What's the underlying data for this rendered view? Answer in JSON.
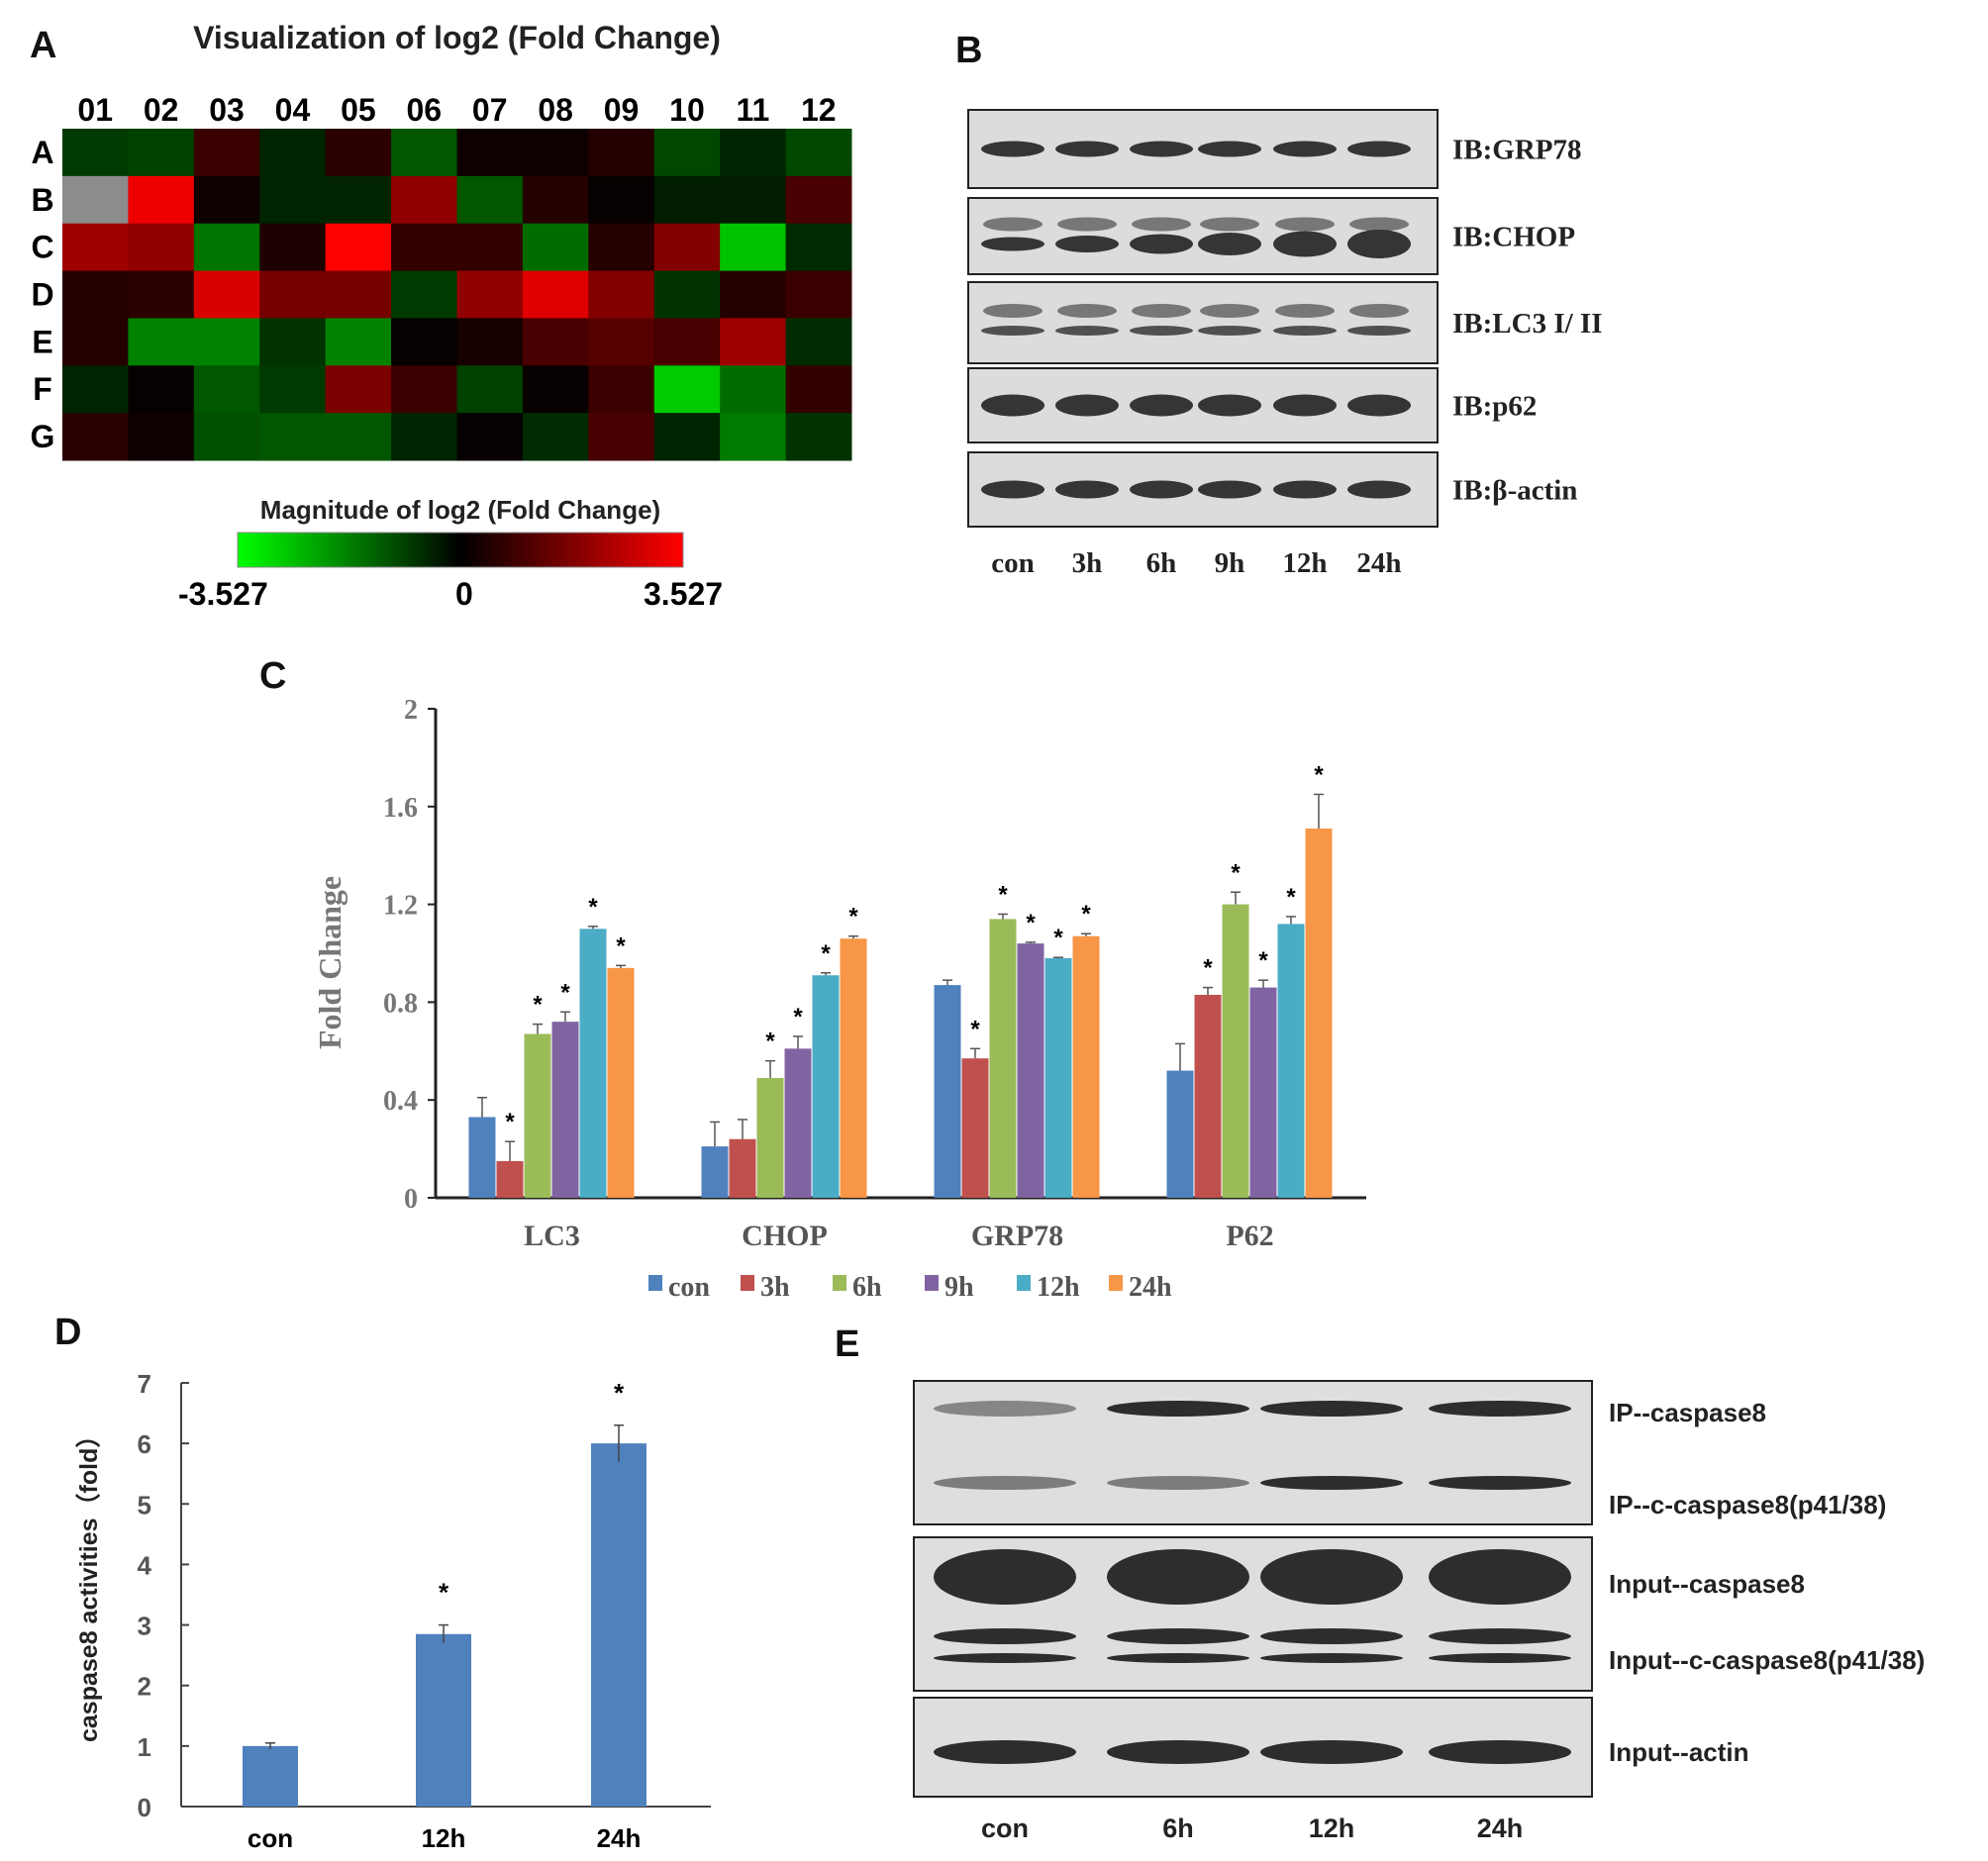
{
  "panels": {
    "a": "A",
    "b": "B",
    "c": "C",
    "d": "D",
    "e": "E"
  },
  "chart_data": [
    {
      "type": "heatmap",
      "title": "Visualization of log2 (Fold Change)",
      "columns": [
        "01",
        "02",
        "03",
        "04",
        "05",
        "06",
        "07",
        "08",
        "09",
        "10",
        "11",
        "12"
      ],
      "rows": [
        "A",
        "B",
        "C",
        "D",
        "E",
        "F",
        "G"
      ],
      "values": [
        [
          -0.8,
          -0.9,
          0.8,
          -0.5,
          0.6,
          -1.2,
          0.2,
          0.2,
          0.5,
          -1.0,
          -0.5,
          -1.0
        ],
        [
          null,
          3.3,
          0.2,
          -0.5,
          -0.5,
          2.0,
          -1.2,
          0.5,
          0.1,
          -0.4,
          -0.4,
          1.0
        ],
        [
          2.2,
          2.0,
          -1.6,
          0.4,
          3.5,
          0.7,
          0.7,
          -1.5,
          0.5,
          1.8,
          -2.7,
          -0.6
        ],
        [
          0.5,
          0.6,
          3.0,
          1.6,
          1.6,
          -0.8,
          2.0,
          3.1,
          1.8,
          -0.7,
          0.5,
          0.8
        ],
        [
          0.5,
          -1.8,
          -1.8,
          -0.7,
          -1.8,
          0.1,
          0.3,
          1.0,
          1.2,
          1.0,
          2.2,
          -0.6
        ],
        [
          -0.5,
          0.1,
          -1.2,
          -0.8,
          1.7,
          0.8,
          -0.9,
          0.1,
          0.8,
          -2.8,
          -1.5,
          0.7
        ],
        [
          0.6,
          0.2,
          -1.1,
          -1.2,
          -1.2,
          -0.5,
          0.1,
          -0.6,
          1.0,
          -0.5,
          -1.7,
          -0.7
        ]
      ],
      "missing_color": "#8c8c8c",
      "colorbar": {
        "title": "Magnitude of log2 (Fold Change)",
        "min_label": "-3.527",
        "mid_label": "0",
        "max_label": "3.527",
        "range": [
          -3.527,
          3.527
        ],
        "low_color": "#00ff00",
        "mid_color": "#000000",
        "high_color": "#ff0000"
      }
    },
    {
      "type": "bar",
      "ylabel": "Fold Change",
      "ylim": [
        0,
        2
      ],
      "yticks": [
        "0",
        "0.4",
        "0.8",
        "1.2",
        "1.6",
        "2"
      ],
      "categories": [
        "LC3",
        "CHOP",
        "GRP78",
        "P62"
      ],
      "legend_position": "bottom",
      "series": [
        {
          "name": "con",
          "color": "#4f81bd",
          "values": [
            0.33,
            0.21,
            0.87,
            0.52
          ],
          "errors": [
            0.08,
            0.1,
            0.02,
            0.11
          ],
          "significant": [
            false,
            false,
            false,
            false
          ]
        },
        {
          "name": "3h",
          "color": "#c0504d",
          "values": [
            0.15,
            0.24,
            0.57,
            0.83
          ],
          "errors": [
            0.08,
            0.08,
            0.04,
            0.03
          ],
          "significant": [
            true,
            false,
            true,
            true
          ]
        },
        {
          "name": "6h",
          "color": "#9bbb59",
          "values": [
            0.67,
            0.49,
            1.14,
            1.2
          ],
          "errors": [
            0.04,
            0.07,
            0.02,
            0.05
          ],
          "significant": [
            true,
            true,
            true,
            true
          ]
        },
        {
          "name": "9h",
          "color": "#8064a2",
          "values": [
            0.72,
            0.61,
            1.04,
            0.86
          ],
          "errors": [
            0.04,
            0.05,
            0.005,
            0.03
          ],
          "significant": [
            true,
            true,
            true,
            true
          ]
        },
        {
          "name": "12h",
          "color": "#4bacc6",
          "values": [
            1.1,
            0.91,
            0.98,
            1.12
          ],
          "errors": [
            0.01,
            0.01,
            0.003,
            0.03
          ],
          "significant": [
            true,
            true,
            true,
            true
          ]
        },
        {
          "name": "24h",
          "color": "#f79646",
          "values": [
            0.94,
            1.06,
            1.07,
            1.51
          ],
          "errors": [
            0.01,
            0.01,
            0.01,
            0.14
          ],
          "significant": [
            true,
            true,
            true,
            true
          ]
        }
      ],
      "significance_mark": "*"
    },
    {
      "type": "bar",
      "ylabel": "caspase8 activities（fold）",
      "ylim": [
        0,
        7
      ],
      "yticks": [
        "0",
        "1",
        "2",
        "3",
        "4",
        "5",
        "6",
        "7"
      ],
      "categories": [
        "con",
        "12h",
        "24h"
      ],
      "values": [
        1.0,
        2.85,
        6.0
      ],
      "errors": [
        0.05,
        0.15,
        0.3
      ],
      "significant": [
        false,
        true,
        true
      ],
      "color": "#4f81bd",
      "significance_mark": "*"
    }
  ],
  "blot_b": {
    "labels": [
      "IB:GRP78",
      "IB:CHOP",
      "IB:LC3 I/ II",
      "IB:p62",
      "IB:β-actin"
    ],
    "lanes": [
      "con",
      "3h",
      "6h",
      "9h",
      "12h",
      "24h"
    ]
  },
  "blot_e": {
    "labels": [
      "IP--caspase8",
      "IP--c-caspase8(p41/38)",
      "Input--caspase8",
      "Input--c-caspase8(p41/38)",
      "Input--actin"
    ],
    "lanes": [
      "con",
      "6h",
      "12h",
      "24h"
    ]
  }
}
